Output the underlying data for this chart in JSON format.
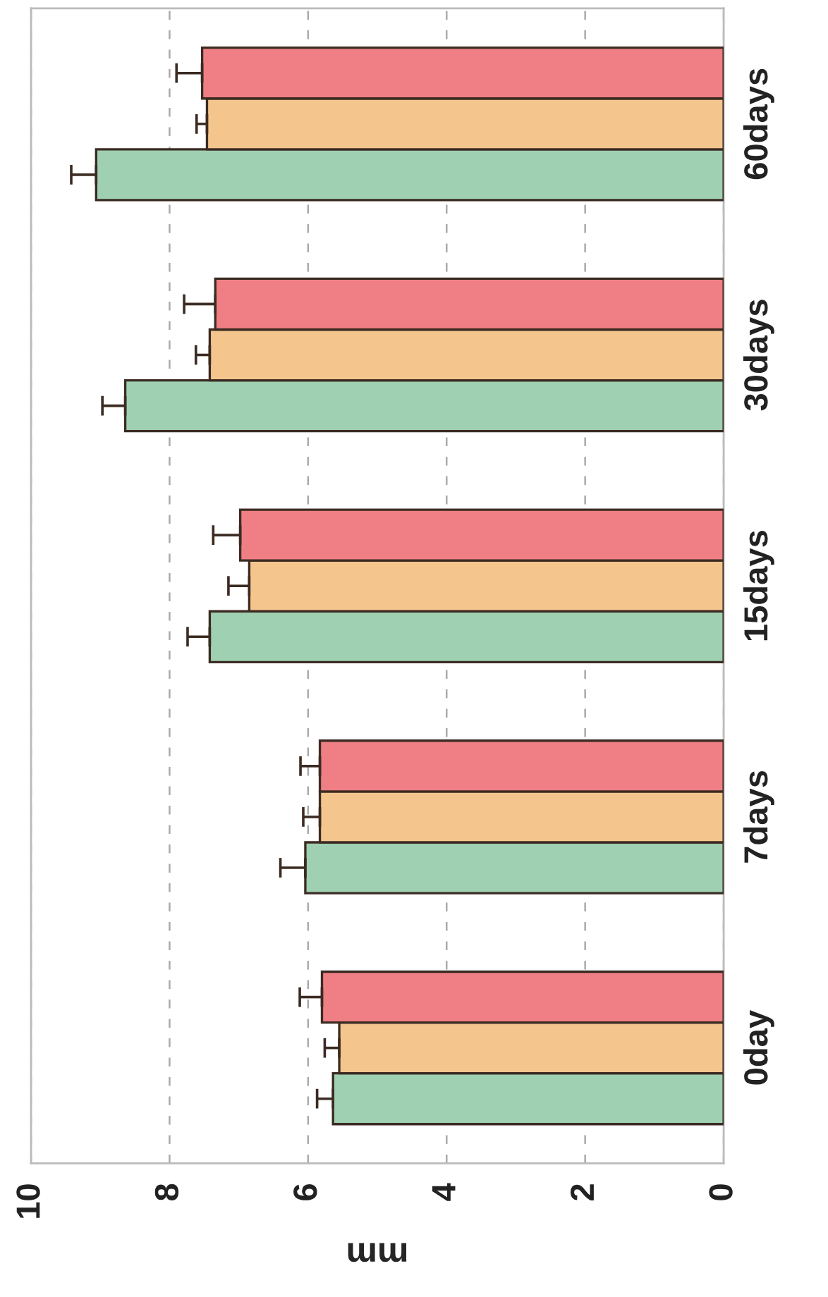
{
  "chart_data": {
    "type": "bar",
    "orientation": "horizontal",
    "xlabel": "mm",
    "categories": [
      "60days",
      "30days",
      "15days",
      "7days",
      "0day"
    ],
    "series": [
      {
        "color": "#9fd0b2",
        "values": [
          9.06,
          8.64,
          7.42,
          6.04,
          5.64
        ],
        "errors": [
          [
            9.06,
            9.42
          ],
          [
            8.64,
            8.97
          ],
          [
            7.42,
            7.74
          ],
          [
            6.04,
            6.4
          ],
          [
            5.64,
            5.87
          ]
        ]
      },
      {
        "color": "#f4c68e",
        "values": [
          7.46,
          7.42,
          6.85,
          5.83,
          5.55
        ],
        "errors": [
          [
            7.46,
            7.61
          ],
          [
            7.42,
            7.62
          ],
          [
            6.85,
            7.15
          ],
          [
            5.83,
            6.07
          ],
          [
            5.55,
            5.76
          ]
        ]
      },
      {
        "color": "#ef7f84",
        "values": [
          7.53,
          7.34,
          6.98,
          5.83,
          5.8
        ],
        "errors": [
          [
            7.53,
            7.9
          ],
          [
            7.34,
            7.79
          ],
          [
            6.98,
            7.37
          ],
          [
            5.83,
            6.11
          ],
          [
            5.8,
            6.12
          ]
        ]
      }
    ],
    "xlim": [
      10,
      0
    ],
    "xticks": [
      0,
      2,
      4,
      6,
      8,
      10
    ],
    "grid": "x",
    "legend": false
  }
}
